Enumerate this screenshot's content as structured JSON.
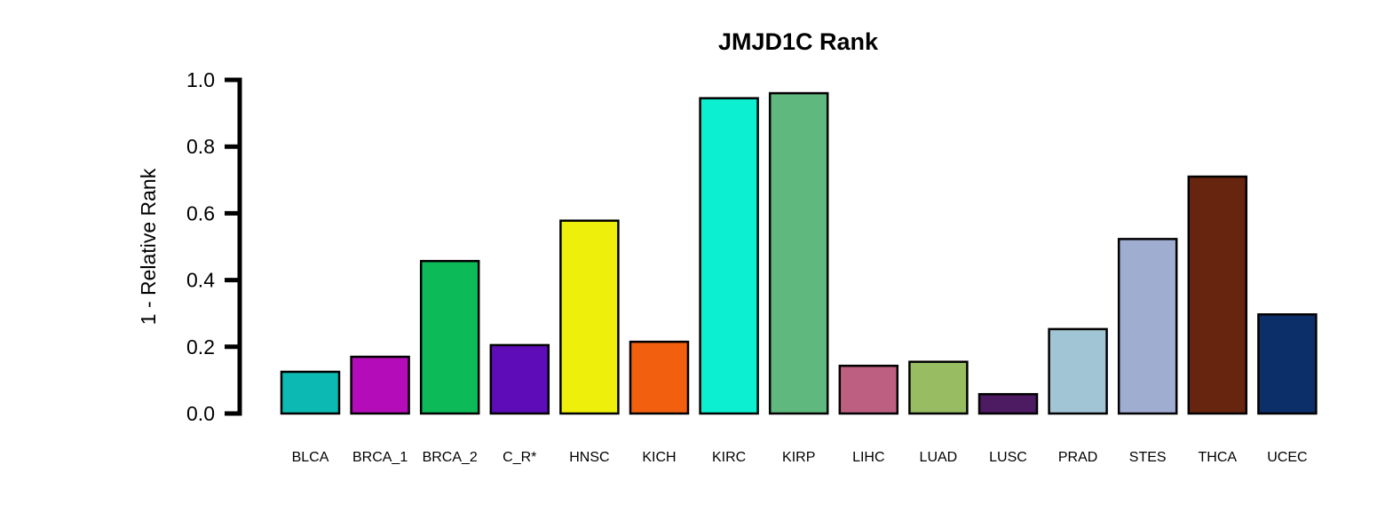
{
  "chart_data": {
    "type": "bar",
    "title": "JMJD1C Rank",
    "xlabel": "",
    "ylabel": "1 - Relative Rank",
    "ylim": [
      0,
      1.0
    ],
    "yticks": [
      "0.0",
      "0.2",
      "0.4",
      "0.6",
      "0.8",
      "1.0"
    ],
    "grid": false,
    "legend": "none",
    "categories": [
      "BLCA",
      "BRCA_1",
      "BRCA_2",
      "C_R*",
      "HNSC",
      "KICH",
      "KIRC",
      "KIRP",
      "LIHC",
      "LUAD",
      "LUSC",
      "PRAD",
      "STES",
      "THCA",
      "UCEC"
    ],
    "values": [
      0.125,
      0.17,
      0.457,
      0.205,
      0.578,
      0.215,
      0.945,
      0.96,
      0.143,
      0.155,
      0.058,
      0.253,
      0.523,
      0.71,
      0.297
    ],
    "colors": [
      "#0cbab3",
      "#b40cb8",
      "#0cba58",
      "#5e0cb8",
      "#eef00c",
      "#f25f0f",
      "#0cefd1",
      "#5fb97e",
      "#bd5f81",
      "#98bc62",
      "#4c1b61",
      "#a1c5d4",
      "#9fadd1",
      "#672510",
      "#0d2f69"
    ]
  }
}
